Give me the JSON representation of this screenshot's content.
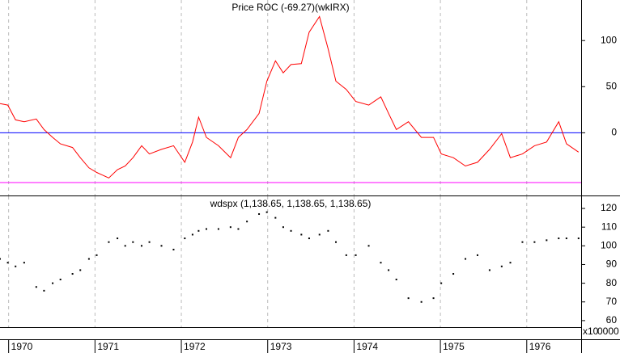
{
  "chart_data": [
    {
      "type": "line",
      "title": "Price ROC (-69.27)(wkIRX)",
      "x": [
        1969.9,
        1969.99,
        1970.08,
        1970.18,
        1970.32,
        1970.41,
        1970.51,
        1970.6,
        1970.74,
        1970.83,
        1970.93,
        1971.02,
        1971.16,
        1971.26,
        1971.35,
        1971.44,
        1971.54,
        1971.63,
        1971.77,
        1971.91,
        1972.04,
        1972.13,
        1972.2,
        1972.29,
        1972.43,
        1972.57,
        1972.66,
        1972.76,
        1972.9,
        1972.99,
        1973.09,
        1973.18,
        1973.27,
        1973.39,
        1973.48,
        1973.6,
        1973.7,
        1973.79,
        1973.91,
        1974.02,
        1974.17,
        1974.31,
        1974.4,
        1974.49,
        1974.63,
        1974.78,
        1974.92,
        1975.01,
        1975.15,
        1975.29,
        1975.43,
        1975.57,
        1975.71,
        1975.81,
        1975.95,
        1976.09,
        1976.23,
        1976.37,
        1976.46,
        1976.6
      ],
      "series": [
        {
          "color": "#ff0000",
          "values": [
            31.6,
            30,
            14,
            12,
            15,
            3.5,
            -5,
            -12,
            -16,
            -27,
            -38,
            -43,
            -49,
            -40,
            -36,
            -27,
            -14,
            -23,
            -18,
            -14,
            -32,
            -10,
            17,
            -5,
            -14,
            -27,
            -5,
            3.5,
            21,
            56,
            78,
            65,
            74,
            75,
            109,
            126,
            91,
            56,
            47,
            34,
            30,
            39,
            21,
            3.5,
            12,
            -5,
            -5,
            -23,
            -27,
            -36,
            -32,
            -18,
            -1,
            -27,
            -23,
            -14,
            -10,
            12,
            -12,
            -21
          ]
        }
      ],
      "hlines": [
        {
          "value": 0,
          "color": "#0000ff"
        },
        {
          "value": -54,
          "color": "#ff00ff"
        }
      ],
      "xlim": [
        1969.9,
        1976.63
      ],
      "xticks": [
        1970,
        1971,
        1972,
        1973,
        1974,
        1975,
        1976
      ],
      "ylim": [
        -68,
        144
      ],
      "yticks": [
        0,
        50,
        100
      ],
      "grid": true
    },
    {
      "type": "scatter",
      "title": "wdspx (1,138.65, 1,138.65, 1,138.65)",
      "x": [
        1969.9,
        1969.99,
        1970.08,
        1970.18,
        1970.32,
        1970.41,
        1970.51,
        1970.6,
        1970.74,
        1970.83,
        1970.93,
        1971.02,
        1971.16,
        1971.26,
        1971.35,
        1971.44,
        1971.54,
        1971.63,
        1971.77,
        1971.91,
        1972.04,
        1972.13,
        1972.2,
        1972.29,
        1972.43,
        1972.57,
        1972.66,
        1972.76,
        1972.9,
        1972.99,
        1973.09,
        1973.18,
        1973.27,
        1973.39,
        1973.48,
        1973.6,
        1973.7,
        1973.79,
        1973.91,
        1974.02,
        1974.17,
        1974.31,
        1974.4,
        1974.49,
        1974.63,
        1974.78,
        1974.92,
        1975.01,
        1975.15,
        1975.29,
        1975.43,
        1975.57,
        1975.71,
        1975.81,
        1975.95,
        1976.09,
        1976.23,
        1976.37,
        1976.46,
        1976.6
      ],
      "series": [
        {
          "color": "#000000",
          "values": [
            93,
            91,
            89,
            91,
            78,
            76,
            80,
            82,
            85,
            87,
            93,
            95,
            102,
            104,
            100,
            102,
            100,
            102,
            100,
            98,
            104,
            106,
            108,
            109,
            109,
            110,
            109,
            113,
            117,
            118,
            115,
            110,
            108,
            106,
            104,
            106,
            108,
            102,
            95,
            95,
            100,
            91,
            87,
            82,
            72,
            70,
            72,
            80,
            85,
            93,
            95,
            87,
            89,
            91,
            102,
            102,
            103,
            104,
            104,
            104
          ]
        }
      ],
      "xlim": [
        1969.9,
        1976.63
      ],
      "xticks": [
        1970,
        1971,
        1972,
        1973,
        1974,
        1975,
        1976
      ],
      "ylim": [
        56.5,
        126.5
      ],
      "yticks": [
        60,
        70,
        80,
        90,
        100,
        110,
        120
      ],
      "grid": true,
      "volume_labels": [
        "x10",
        "0000"
      ]
    }
  ]
}
